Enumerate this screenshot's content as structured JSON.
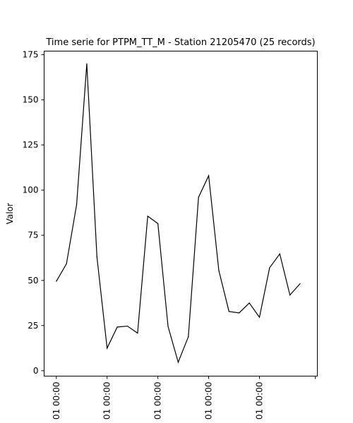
{
  "chart_data": {
    "type": "line",
    "title": "Time serie for PTPM_TT_M - Station 21205470 (25 records)",
    "xlabel": "",
    "ylabel": "Valor",
    "ylim": [
      -3,
      177
    ],
    "yticks": [
      0,
      25,
      50,
      75,
      100,
      125,
      150,
      175
    ],
    "ytick_labels": [
      "0",
      "25",
      "50",
      "75",
      "100",
      "125",
      "150",
      "175"
    ],
    "xtick_labels": [
      "01 00:00",
      "01 00:00",
      "01 00:00",
      "01 00:00",
      "01 00:00",
      ""
    ],
    "xticks_index": [
      0,
      5,
      10,
      15,
      20,
      25.5
    ],
    "xlim_index": [
      -1.2,
      25.7
    ],
    "grid": false,
    "line_color": "#000000",
    "series": [
      {
        "values": [
          49.5,
          59.2,
          92.0,
          170.0,
          63.0,
          12.5,
          24.2,
          24.7,
          20.8,
          85.6,
          81.5,
          24.5,
          4.7,
          18.8,
          96.0,
          108.0,
          55.5,
          32.8,
          32.0,
          37.5,
          29.6,
          57.0,
          64.7,
          41.9,
          48.2
        ]
      }
    ]
  }
}
